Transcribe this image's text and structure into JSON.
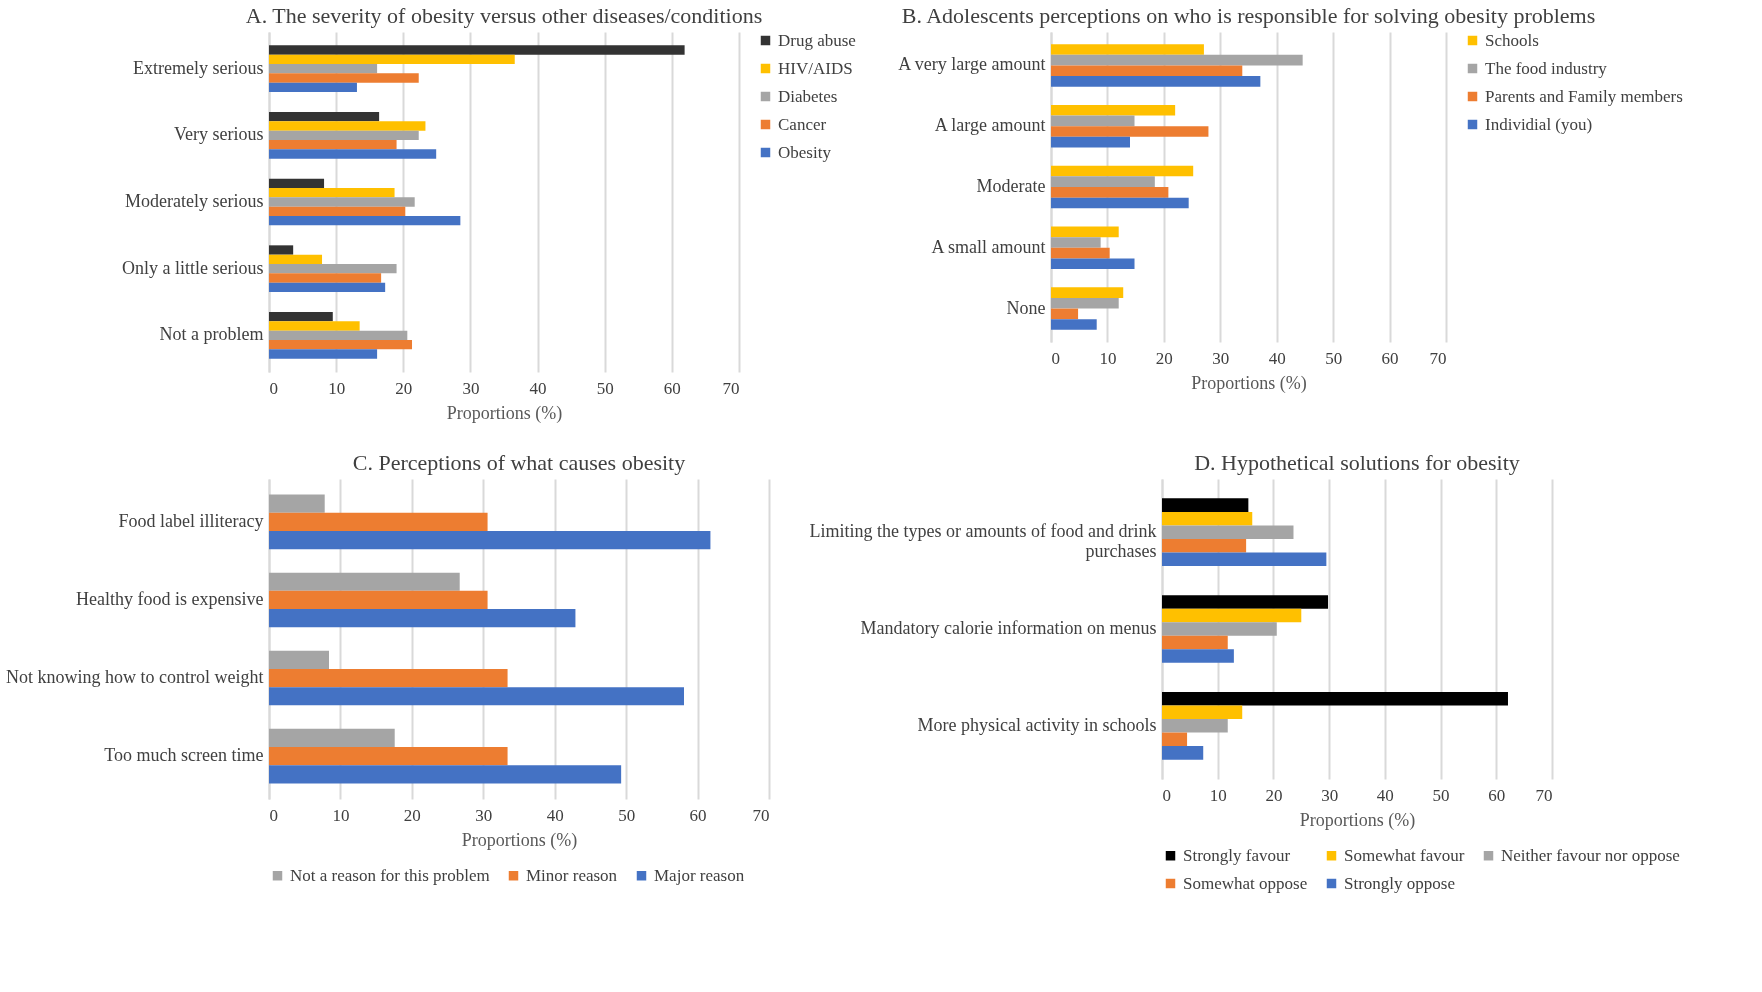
{
  "chart_data": [
    {
      "type": "bar",
      "orientation": "horizontal",
      "title": "A. The severity of obesity versus other diseases/conditions",
      "xlabel": "Proportions (%)",
      "categories": [
        "Extremely serious",
        "Very serious",
        "Moderately serious",
        "Only a little serious",
        "Not a problem"
      ],
      "series": [
        {
          "name": "Drug abuse",
          "color": "#333333",
          "values": [
            61.9,
            16.4,
            8.2,
            3.6,
            9.5
          ]
        },
        {
          "name": "HIV/AIDS",
          "color": "#ffc000",
          "values": [
            36.6,
            23.3,
            18.7,
            7.9,
            13.5
          ]
        },
        {
          "name": "Diabetes",
          "color": "#a5a5a5",
          "values": [
            16.1,
            22.3,
            21.7,
            19.0,
            20.6
          ]
        },
        {
          "name": "Cancer",
          "color": "#ed7d31",
          "values": [
            22.3,
            19.0,
            20.3,
            16.7,
            21.3
          ]
        },
        {
          "name": "Obesity",
          "color": "#4472c4",
          "values": [
            13.1,
            24.9,
            28.5,
            17.3,
            16.1
          ]
        }
      ],
      "xlim": [
        0,
        70
      ],
      "xticks": [
        0,
        10,
        20,
        30,
        40,
        50,
        60,
        70
      ],
      "grid": "x",
      "legend": "right"
    },
    {
      "type": "bar",
      "orientation": "horizontal",
      "title": "B. Adolescents perceptions on who is responsible for solving obesity problems",
      "xlabel": "Proportions (%)",
      "categories": [
        "A very large amount",
        "A large amount",
        "Moderate",
        "A small amount",
        "None"
      ],
      "series": [
        {
          "name": "Schools",
          "color": "#ffc000",
          "values": [
            27.1,
            22.0,
            25.2,
            12.0,
            12.8
          ]
        },
        {
          "name": "The food industry",
          "color": "#a5a5a5",
          "values": [
            44.6,
            14.8,
            18.4,
            8.8,
            12.0
          ]
        },
        {
          "name": "Parents and Family members",
          "color": "#ed7d31",
          "values": [
            33.9,
            27.9,
            20.8,
            10.4,
            4.8
          ]
        },
        {
          "name": "Individial (you)",
          "color": "#4472c4",
          "values": [
            37.1,
            14.0,
            24.4,
            14.8,
            8.1
          ]
        }
      ],
      "xlim": [
        0,
        70
      ],
      "xticks": [
        0,
        10,
        20,
        30,
        40,
        50,
        60,
        70
      ],
      "grid": "x",
      "legend": "right"
    },
    {
      "type": "bar",
      "orientation": "horizontal",
      "title": "C. Perceptions of what causes obesity",
      "xlabel": "Proportions (%)",
      "categories": [
        "Food label illiteracy",
        "Healthy food is expensive",
        "Not knowing how to control weight",
        "Too much screen time"
      ],
      "series": [
        {
          "name": "Not a reason for this problem",
          "color": "#a5a5a5",
          "values": [
            7.8,
            26.7,
            8.4,
            17.6
          ]
        },
        {
          "name": "Minor reason",
          "color": "#ed7d31",
          "values": [
            30.6,
            30.6,
            33.4,
            33.4
          ]
        },
        {
          "name": "Major reason",
          "color": "#4472c4",
          "values": [
            61.8,
            42.9,
            58.1,
            49.3
          ]
        }
      ],
      "xlim": [
        0,
        70
      ],
      "xticks": [
        0,
        10,
        20,
        30,
        40,
        50,
        60,
        70
      ],
      "grid": "x",
      "legend": "bottom"
    },
    {
      "type": "bar",
      "orientation": "horizontal",
      "title": "D. Hypothetical solutions for obesity",
      "xlabel": "Proportions (%)",
      "categories": [
        "Limiting the types or amounts of food and drink purchases",
        "Mandatory calorie information on menus",
        "More physical activity in schools"
      ],
      "series": [
        {
          "name": "Strongly favour",
          "color": "#000000",
          "values": [
            15.5,
            29.8,
            62.1
          ]
        },
        {
          "name": "Somewhat favour",
          "color": "#ffc000",
          "values": [
            16.2,
            25.0,
            14.4
          ]
        },
        {
          "name": "Neither favour nor oppose",
          "color": "#a5a5a5",
          "values": [
            23.6,
            20.6,
            11.8
          ]
        },
        {
          "name": "Somewhat oppose",
          "color": "#ed7d31",
          "values": [
            15.1,
            11.8,
            4.5
          ]
        },
        {
          "name": "Strongly oppose",
          "color": "#4472c4",
          "values": [
            29.5,
            12.9,
            7.4
          ]
        }
      ],
      "xlim": [
        0,
        70
      ],
      "xticks": [
        0,
        10,
        20,
        30,
        40,
        50,
        60,
        70
      ],
      "grid": "x",
      "legend": "bottom"
    }
  ]
}
